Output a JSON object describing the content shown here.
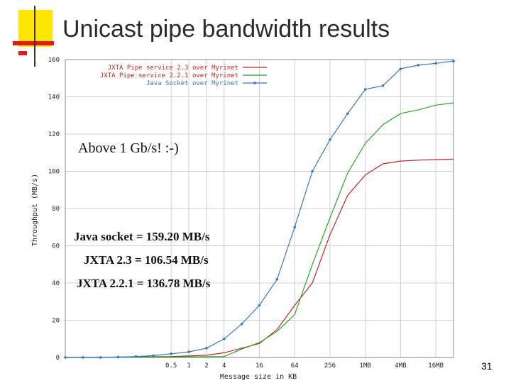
{
  "slide": {
    "title": "Unicast pipe bandwidth results",
    "number": "31"
  },
  "annotations": {
    "above": "Above 1 Gb/s! :-)",
    "java": "Java socket = 159.20 MB/s",
    "jxta23": "JXTA 2.3 = 106.54 MB/s",
    "jxta221": "JXTA 2.2.1 = 136.78 MB/s"
  },
  "chart_data": {
    "type": "line",
    "title": "",
    "xlabel": "Message size in KB",
    "ylabel": "Throughput (MB/s)",
    "ylim": [
      0,
      160
    ],
    "yticks": [
      0,
      20,
      40,
      60,
      80,
      100,
      120,
      140,
      160
    ],
    "x_scale": "log2",
    "xlim_kb": [
      0.0078125,
      32768
    ],
    "xticks": [
      {
        "kb": 0.5,
        "label": "0.5"
      },
      {
        "kb": 1,
        "label": "1"
      },
      {
        "kb": 2,
        "label": "2"
      },
      {
        "kb": 4,
        "label": "4"
      },
      {
        "kb": 16,
        "label": "16"
      },
      {
        "kb": 64,
        "label": "64"
      },
      {
        "kb": 256,
        "label": "256"
      },
      {
        "kb": 1024,
        "label": "1MB"
      },
      {
        "kb": 4096,
        "label": "4MB"
      },
      {
        "kb": 16384,
        "label": "16MB"
      }
    ],
    "grid": true,
    "legend_position": "top-left",
    "series": [
      {
        "name": "JXTA Pipe service 2.3 over Myrinet",
        "color": "#cc2222",
        "marker": false,
        "points": [
          [
            0.0078125,
            0
          ],
          [
            0.125,
            0.3
          ],
          [
            0.5,
            0.5
          ],
          [
            1,
            0.8
          ],
          [
            2,
            1.2
          ],
          [
            4,
            2.5
          ],
          [
            8,
            5
          ],
          [
            16,
            7.5
          ],
          [
            32,
            15
          ],
          [
            64,
            28
          ],
          [
            128,
            40
          ],
          [
            256,
            66
          ],
          [
            512,
            87
          ],
          [
            1024,
            98
          ],
          [
            2048,
            104
          ],
          [
            4096,
            105.5
          ],
          [
            8192,
            106
          ],
          [
            16384,
            106.3
          ],
          [
            32768,
            106.54
          ]
        ]
      },
      {
        "name": "JXTA Pipe service 2.2.1 over Myrinet",
        "color": "#22aa22",
        "marker": false,
        "points": [
          [
            0.0078125,
            0
          ],
          [
            1,
            0.3
          ],
          [
            4,
            0.5
          ],
          [
            8,
            4.5
          ],
          [
            16,
            8
          ],
          [
            32,
            14
          ],
          [
            64,
            23
          ],
          [
            128,
            50
          ],
          [
            256,
            75
          ],
          [
            512,
            99
          ],
          [
            1024,
            115
          ],
          [
            2048,
            125
          ],
          [
            4096,
            131
          ],
          [
            8192,
            133
          ],
          [
            16384,
            135.5
          ],
          [
            32768,
            136.78
          ]
        ]
      },
      {
        "name": "Java Socket over Myrinet",
        "color": "#3377cc",
        "marker": true,
        "points": [
          [
            0.0078125,
            0
          ],
          [
            0.015625,
            0
          ],
          [
            0.03125,
            0
          ],
          [
            0.0625,
            0.2
          ],
          [
            0.125,
            0.5
          ],
          [
            0.25,
            1
          ],
          [
            0.5,
            2
          ],
          [
            1,
            3
          ],
          [
            2,
            5
          ],
          [
            4,
            10
          ],
          [
            8,
            18
          ],
          [
            16,
            28
          ],
          [
            32,
            42
          ],
          [
            64,
            70
          ],
          [
            128,
            100
          ],
          [
            256,
            117
          ],
          [
            512,
            131
          ],
          [
            1024,
            144
          ],
          [
            2048,
            146
          ],
          [
            4096,
            155
          ],
          [
            8192,
            157
          ],
          [
            16384,
            158
          ],
          [
            32768,
            159.2
          ]
        ]
      }
    ]
  }
}
